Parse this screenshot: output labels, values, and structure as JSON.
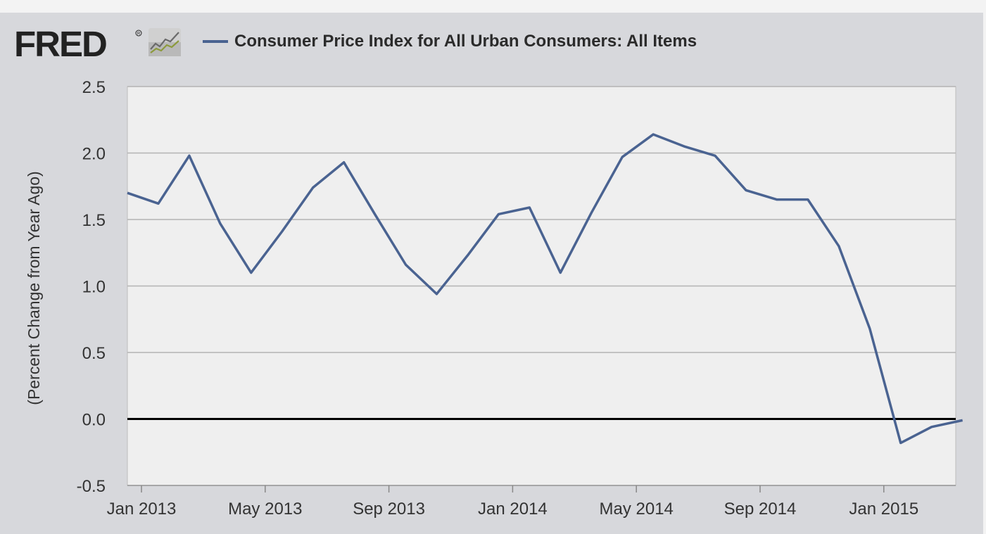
{
  "header": {
    "logo_text": "FRED",
    "logo_mark": "®",
    "logo_icon": "line-chart-icon",
    "legend_label": "Consumer Price Index for All Urban Consumers: All Items"
  },
  "colors": {
    "series": "#4a6391",
    "plot_bg": "#efefef",
    "frame_bg": "#d7d8dc",
    "grid": "#b3b3b3",
    "zero_line": "#000000"
  },
  "chart_data": {
    "type": "line",
    "title": "Consumer Price Index for All Urban Consumers: All Items",
    "xlabel": "",
    "ylabel": "(Percent Change from Year Ago)",
    "ylim": [
      -0.5,
      2.5
    ],
    "yticks": [
      2.5,
      2.0,
      1.5,
      1.0,
      0.5,
      0.0,
      -0.5
    ],
    "ytick_labels": [
      "2.5",
      "2.0",
      "1.5",
      "1.0",
      "0.5",
      "0.0",
      "-0.5"
    ],
    "xticks": [
      "Jan 2013",
      "May 2013",
      "Sep 2013",
      "Jan 2014",
      "May 2014",
      "Sep 2014",
      "Jan 2015"
    ],
    "grid": true,
    "series": [
      {
        "name": "Consumer Price Index for All Urban Consumers: All Items",
        "x": [
          "2012-12",
          "2013-01",
          "2013-02",
          "2013-03",
          "2013-04",
          "2013-05",
          "2013-06",
          "2013-07",
          "2013-08",
          "2013-09",
          "2013-10",
          "2013-11",
          "2013-12",
          "2014-01",
          "2014-02",
          "2014-03",
          "2014-04",
          "2014-05",
          "2014-06",
          "2014-07",
          "2014-08",
          "2014-09",
          "2014-10",
          "2014-11",
          "2014-12",
          "2015-01",
          "2015-02",
          "2015-03"
        ],
        "values": [
          1.7,
          1.62,
          1.98,
          1.47,
          1.1,
          1.41,
          1.74,
          1.93,
          1.54,
          1.16,
          0.94,
          1.23,
          1.54,
          1.59,
          1.1,
          1.55,
          1.97,
          2.14,
          2.05,
          1.98,
          1.72,
          1.65,
          1.65,
          1.3,
          0.68,
          -0.18,
          -0.06,
          -0.01
        ]
      }
    ]
  }
}
